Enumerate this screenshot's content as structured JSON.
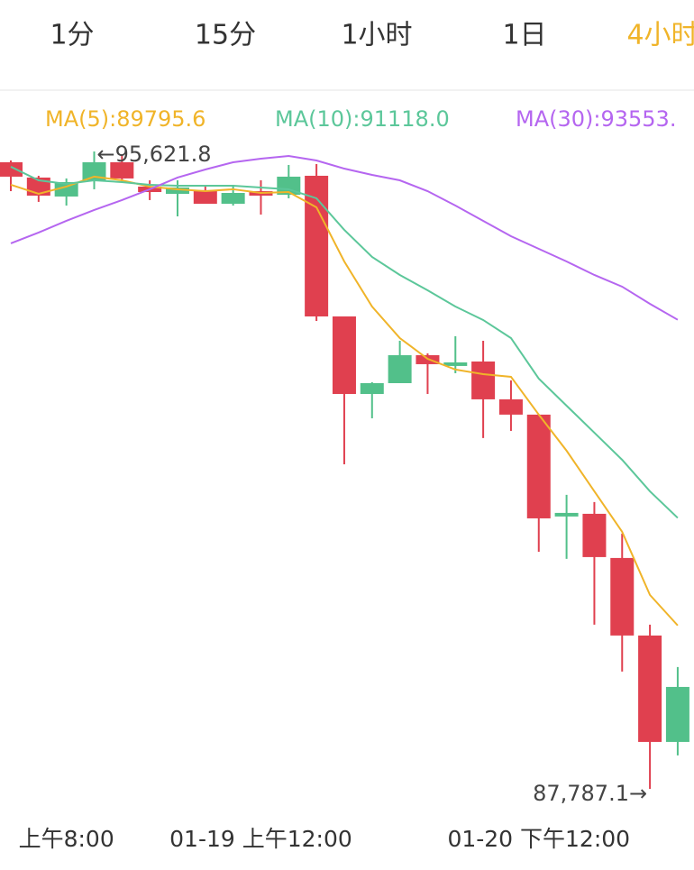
{
  "tabs": [
    "1分",
    "15分",
    "1小时",
    "1日",
    "4小时"
  ],
  "active_tab": 4,
  "chart_data": {
    "type": "candlestick",
    "up_color": "#52c08a",
    "down_color": "#e0404f",
    "categories": [
      null,
      null,
      "上午8:00",
      null,
      null,
      null,
      null,
      null,
      null,
      "01-19 上午12:00",
      null,
      null,
      null,
      null,
      null,
      null,
      null,
      null,
      null,
      "01-20 下午12:00",
      null,
      null,
      null,
      null,
      null
    ],
    "open": [
      95489,
      95301,
      95068,
      95267,
      95489,
      95190,
      95101,
      95146,
      94979,
      95134,
      95090,
      95323,
      93594,
      92641,
      92774,
      93118,
      92985,
      93040,
      92575,
      92387,
      91135,
      91168,
      90625,
      89672,
      88364
    ],
    "high": [
      95511,
      95323,
      95290,
      95621.8,
      95578,
      95267,
      95267,
      95190,
      95212,
      95267,
      95456,
      95467,
      93594,
      92786,
      93295,
      93140,
      93351,
      93295,
      92808,
      92387,
      91401,
      91312,
      90924,
      89805,
      89284
    ],
    "low": [
      95134,
      95002,
      94957,
      95157,
      95245,
      95024,
      94824,
      94979,
      94957,
      94846,
      95046,
      93539,
      91777,
      92342,
      92774,
      92641,
      92896,
      92099,
      92187,
      90702,
      90614,
      89805,
      89229,
      87787.1,
      88198
    ],
    "close": [
      95312,
      95079,
      95245,
      95489,
      95290,
      95123,
      95179,
      94979,
      95112,
      95079,
      95312,
      93594,
      92641,
      92774,
      93118,
      93007,
      93029,
      92575,
      92387,
      91112,
      91179,
      90636,
      89672,
      88364,
      89040
    ],
    "high_label": "←95,621.8",
    "low_label": "87,787.1→",
    "ma_lines": [
      {
        "label": "MA(5):89795.6",
        "color": "#f0b429",
        "values": [
          95212,
          95101,
          95190,
          95312,
          95267,
          95190,
          95157,
          95134,
          95157,
          95112,
          95123,
          94935,
          94270,
          93716,
          93328,
          93073,
          92941,
          92885,
          92852,
          92387,
          91944,
          91445,
          90947,
          90171,
          89795.6
        ]
      },
      {
        "label": "MA(10):91118.0",
        "color": "#5cc79a",
        "values": [
          95434,
          95267,
          95223,
          95267,
          95245,
          95212,
          95201,
          95201,
          95201,
          95179,
          95157,
          95046,
          94658,
          94325,
          94104,
          93915,
          93716,
          93550,
          93328,
          92830,
          92497,
          92165,
          91832,
          91445,
          91118.0
        ]
      },
      {
        "label": "MA(30):93553.",
        "color": "#b566f0",
        "values": [
          94492,
          94625,
          94769,
          94902,
          95024,
          95157,
          95301,
          95400,
          95489,
          95533,
          95566,
          95511,
          95411,
          95334,
          95267,
          95134,
          94957,
          94769,
          94580,
          94425,
          94270,
          94104,
          93960,
          93749,
          93553
        ]
      }
    ]
  }
}
